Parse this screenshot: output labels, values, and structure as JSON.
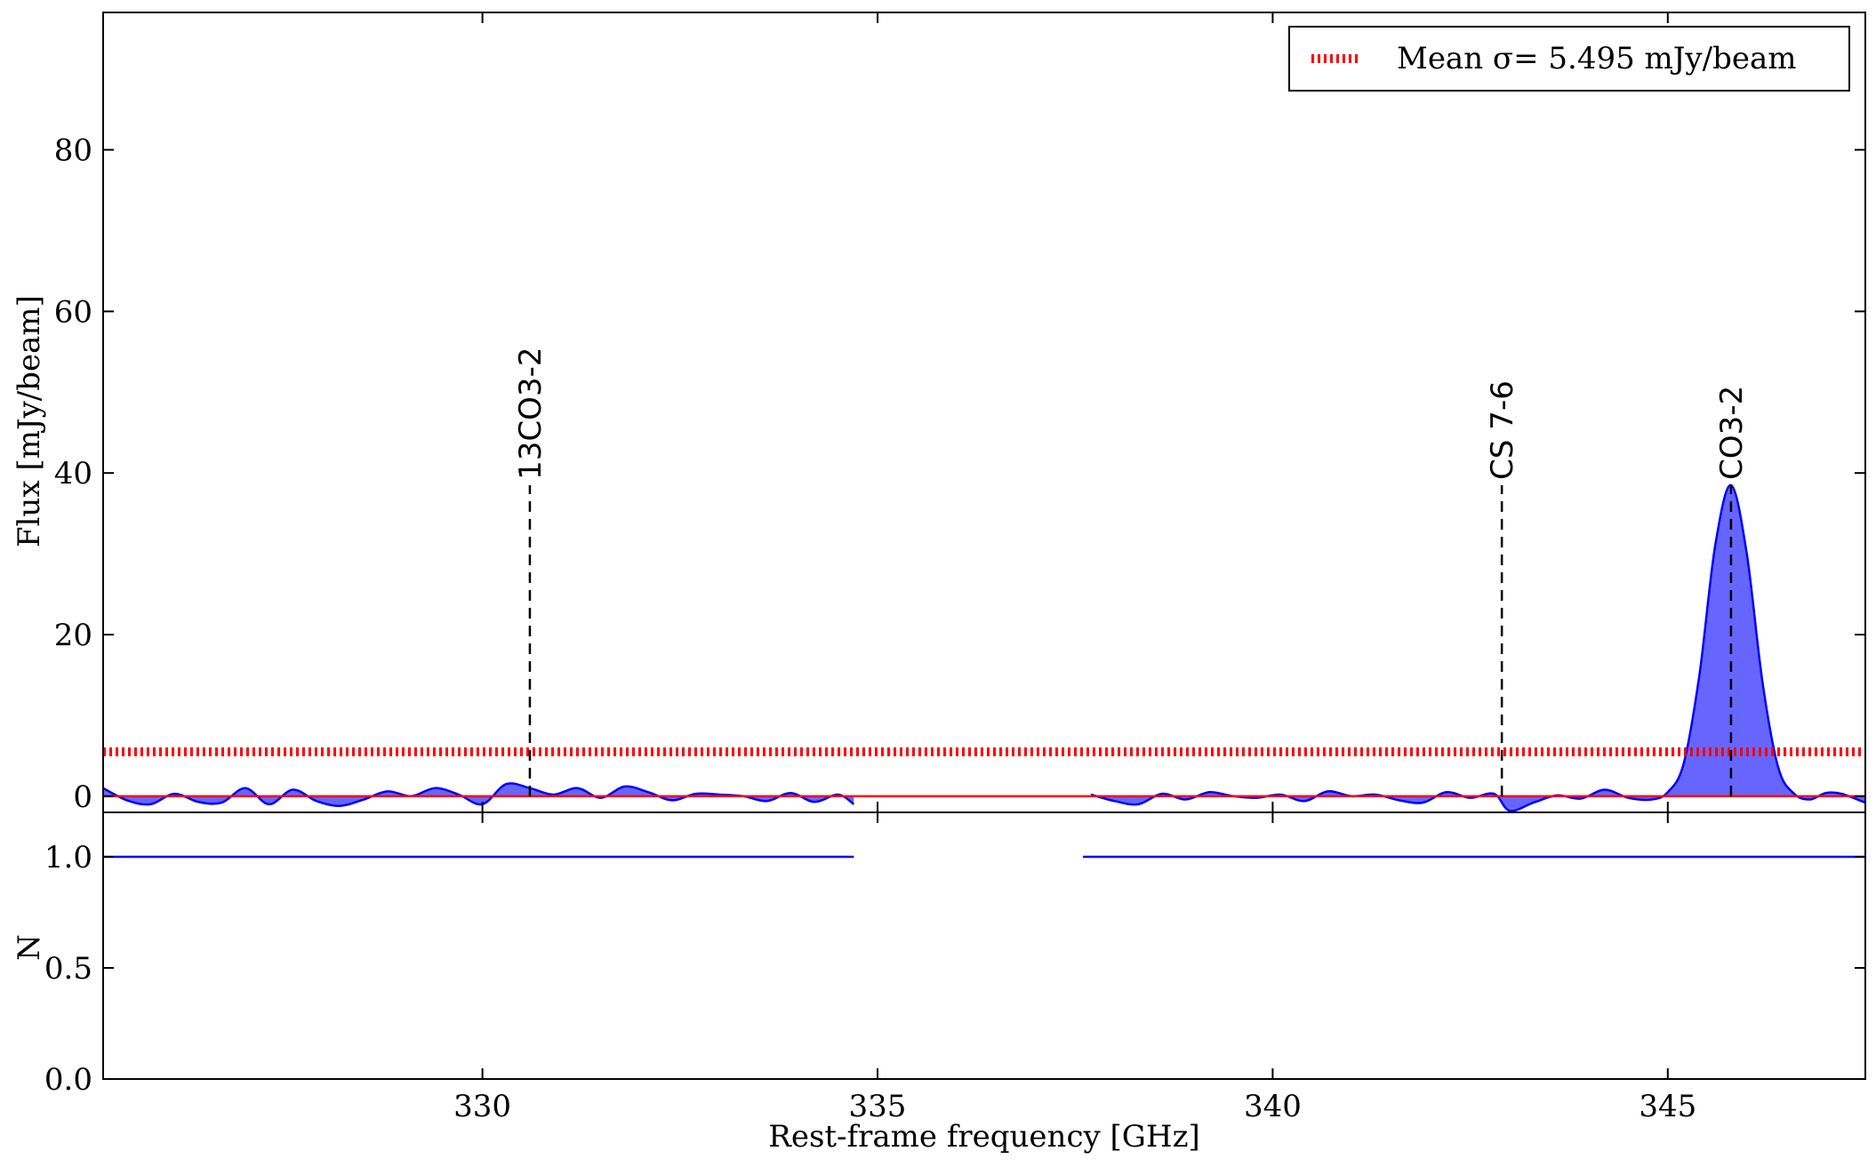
{
  "chart_data": [
    {
      "type": "area",
      "xlim": [
        325.2,
        347.5
      ],
      "ylim": [
        -2,
        97
      ],
      "ylabel": "Flux [mJy/beam]",
      "yticks": [
        0,
        20,
        40,
        60,
        80
      ],
      "xticks": [
        330,
        335,
        340,
        345
      ],
      "sigma_level": 5.495,
      "legend": {
        "label": "Mean σ= 5.495 mJy/beam",
        "placement": "top-right"
      },
      "colors": {
        "spectrum": "#0000ff",
        "fill": "#6666ff",
        "sigma": "#ff0000",
        "zero": "#ff0000",
        "marker": "#000000"
      },
      "spectrum_segments": [
        {
          "x": [
            325.2,
            325.5,
            325.8,
            326.1,
            326.4,
            326.7,
            327.0,
            327.3,
            327.6,
            327.9,
            328.2,
            328.5,
            328.8,
            329.1,
            329.4,
            329.7,
            330.0,
            330.3,
            330.6,
            330.9,
            331.2,
            331.5,
            331.8,
            332.1,
            332.4,
            332.7,
            333.0,
            333.3,
            333.6,
            333.9,
            334.2,
            334.5,
            334.7
          ],
          "y": [
            1.0,
            -0.5,
            -1.0,
            0.3,
            -0.7,
            -0.8,
            1.0,
            -1.0,
            0.8,
            -0.6,
            -1.2,
            -0.4,
            0.6,
            0.0,
            1.0,
            0.2,
            -1.0,
            1.5,
            1.0,
            0.2,
            1.0,
            -0.2,
            1.2,
            0.5,
            -0.5,
            0.3,
            0.2,
            0.0,
            -0.6,
            0.4,
            -0.7,
            0.2,
            -1.0
          ]
        },
        {
          "x": [
            337.7,
            338.0,
            338.3,
            338.6,
            338.9,
            339.2,
            339.5,
            339.8,
            340.1,
            340.4,
            340.7,
            341.0,
            341.3,
            341.6,
            341.9,
            342.2,
            342.5,
            342.8,
            343.0,
            343.3,
            343.6,
            343.9,
            344.2,
            344.5,
            344.8,
            345.0,
            345.2,
            345.4,
            345.6,
            345.8,
            346.0,
            346.2,
            346.4,
            346.6,
            346.8,
            347.0,
            347.2,
            347.5
          ],
          "y": [
            0.2,
            -0.6,
            -1.0,
            0.3,
            -0.4,
            0.5,
            0.0,
            -0.2,
            0.2,
            -0.6,
            0.6,
            0.0,
            0.2,
            -0.5,
            -0.8,
            0.5,
            -0.2,
            0.3,
            -1.8,
            -0.8,
            0.1,
            -0.3,
            0.8,
            -0.2,
            -0.4,
            0.5,
            4.0,
            15.0,
            31.0,
            38.5,
            30.0,
            14.0,
            3.5,
            0.3,
            -0.4,
            0.4,
            0.3,
            -0.8
          ]
        }
      ],
      "line_markers": [
        {
          "label": "13CO3-2",
          "x": 330.6
        },
        {
          "label": "CS 7-6",
          "x": 342.9
        },
        {
          "label": "CO3-2",
          "x": 345.8
        }
      ]
    },
    {
      "type": "line",
      "xlim": [
        325.2,
        347.5
      ],
      "ylim": [
        0,
        1.2
      ],
      "xlabel": "Rest-frame frequency [GHz]",
      "ylabel": "N",
      "xticks": [
        330,
        335,
        340,
        345
      ],
      "yticks": [
        "0.0",
        "0.5",
        "1.0"
      ],
      "segments": [
        {
          "x": [
            325.2,
            334.7
          ],
          "y": [
            1.0,
            1.0
          ]
        },
        {
          "x": [
            337.6,
            347.5
          ],
          "y": [
            1.0,
            1.0
          ]
        }
      ]
    }
  ]
}
